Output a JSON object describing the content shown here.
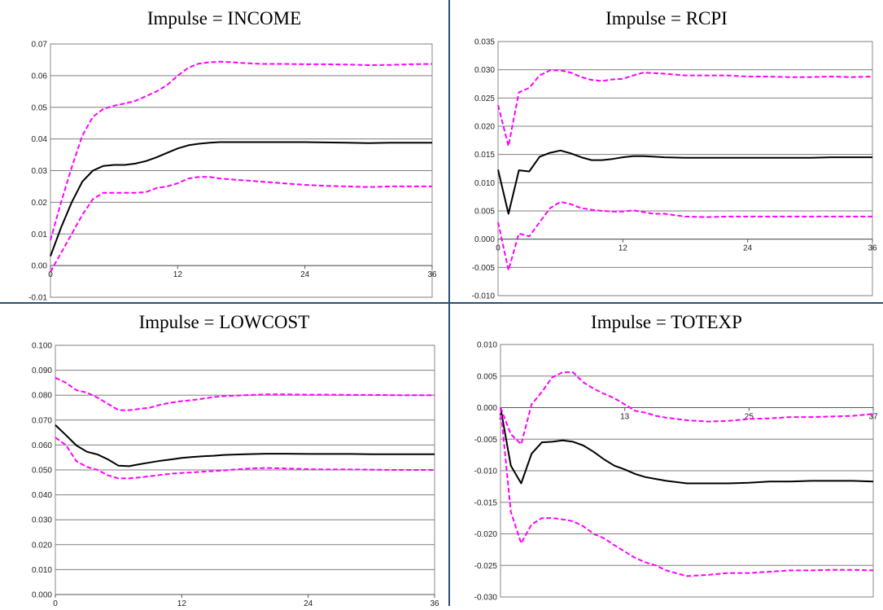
{
  "chart_data": [
    {
      "type": "line",
      "title": "Impulse = INCOME",
      "ylim": [
        -0.01,
        0.07
      ],
      "yticks": [
        "0.07",
        "0.06",
        "0.05",
        "0.04",
        "0.03",
        "0.02",
        "0.01",
        "0.00",
        "-0.01"
      ],
      "yvals": [
        0.07,
        0.06,
        0.05,
        0.04,
        0.03,
        0.02,
        0.01,
        0.0,
        -0.01
      ],
      "xlim": [
        0,
        36
      ],
      "xticks": [
        0,
        12,
        24,
        36
      ],
      "xaxis_at": 0,
      "series": [
        {
          "color": "#ff00ff",
          "dashed": true,
          "x": [
            0,
            1,
            2,
            3,
            4,
            5,
            6,
            7,
            8,
            9,
            10,
            11,
            12,
            13,
            14,
            15,
            16,
            17,
            18,
            20,
            22,
            24,
            26,
            28,
            30,
            32,
            34,
            36
          ],
          "y": [
            0.008,
            0.02,
            0.031,
            0.041,
            0.047,
            0.0495,
            0.0505,
            0.0512,
            0.052,
            0.0535,
            0.055,
            0.057,
            0.06,
            0.0625,
            0.0638,
            0.0642,
            0.0644,
            0.0643,
            0.064,
            0.0637,
            0.0637,
            0.0636,
            0.0636,
            0.0635,
            0.0633,
            0.0634,
            0.0636,
            0.0637
          ]
        },
        {
          "color": "#000000",
          "dashed": false,
          "x": [
            0,
            1,
            2,
            3,
            4,
            5,
            6,
            7,
            8,
            9,
            10,
            11,
            12,
            13,
            14,
            15,
            16,
            18,
            20,
            22,
            24,
            26,
            28,
            30,
            32,
            34,
            36
          ],
          "y": [
            0.003,
            0.012,
            0.02,
            0.0265,
            0.03,
            0.0315,
            0.0318,
            0.0318,
            0.0322,
            0.033,
            0.0342,
            0.0356,
            0.037,
            0.038,
            0.0385,
            0.0388,
            0.039,
            0.039,
            0.039,
            0.039,
            0.039,
            0.0389,
            0.0388,
            0.0387,
            0.0388,
            0.0388,
            0.0388
          ]
        },
        {
          "color": "#ff00ff",
          "dashed": true,
          "x": [
            0,
            1,
            2,
            3,
            4,
            5,
            6,
            7,
            8,
            9,
            10,
            11,
            12,
            13,
            14,
            15,
            16,
            18,
            20,
            22,
            24,
            26,
            28,
            30,
            32,
            34,
            36
          ],
          "y": [
            -0.002,
            0.004,
            0.01,
            0.016,
            0.021,
            0.023,
            0.023,
            0.023,
            0.023,
            0.0232,
            0.0245,
            0.025,
            0.026,
            0.0275,
            0.028,
            0.028,
            0.0275,
            0.027,
            0.0265,
            0.026,
            0.0255,
            0.0252,
            0.025,
            0.0248,
            0.025,
            0.025,
            0.025
          ]
        }
      ]
    },
    {
      "type": "line",
      "title": "Impulse = RCPI",
      "ylim": [
        -0.01,
        0.035
      ],
      "yticks": [
        "0.035",
        "0.030",
        "0.025",
        "0.020",
        "0.015",
        "0.010",
        "0.005",
        "0.000",
        "-0.005",
        "-0.010"
      ],
      "yvals": [
        0.035,
        0.03,
        0.025,
        0.02,
        0.015,
        0.01,
        0.005,
        0.0,
        -0.005,
        -0.01
      ],
      "xlim": [
        0,
        36
      ],
      "xticks": [
        0,
        12,
        24,
        36
      ],
      "xaxis_at": 0,
      "series": [
        {
          "color": "#ff00ff",
          "dashed": true,
          "x": [
            0,
            1,
            2,
            3,
            4,
            5,
            6,
            7,
            8,
            9,
            10,
            11,
            12,
            13,
            14,
            15,
            16,
            18,
            20,
            22,
            24,
            26,
            28,
            30,
            32,
            34,
            36
          ],
          "y": [
            0.0237,
            0.0165,
            0.026,
            0.0268,
            0.029,
            0.0299,
            0.0299,
            0.0295,
            0.0287,
            0.0282,
            0.028,
            0.0283,
            0.0284,
            0.029,
            0.0295,
            0.0294,
            0.0293,
            0.029,
            0.029,
            0.029,
            0.0288,
            0.0288,
            0.0287,
            0.0287,
            0.0288,
            0.0287,
            0.0288
          ]
        },
        {
          "color": "#000000",
          "dashed": false,
          "x": [
            0,
            1,
            2,
            3,
            4,
            5,
            6,
            7,
            8,
            9,
            10,
            11,
            12,
            13,
            14,
            15,
            16,
            18,
            20,
            22,
            24,
            26,
            28,
            30,
            32,
            34,
            36
          ],
          "y": [
            0.0123,
            0.0045,
            0.0122,
            0.012,
            0.0146,
            0.0153,
            0.0157,
            0.0152,
            0.0145,
            0.014,
            0.014,
            0.0142,
            0.0145,
            0.0147,
            0.0147,
            0.0146,
            0.0145,
            0.0144,
            0.0144,
            0.0144,
            0.0144,
            0.0144,
            0.0144,
            0.0144,
            0.0145,
            0.0145,
            0.0145
          ]
        },
        {
          "color": "#ff00ff",
          "dashed": true,
          "x": [
            0,
            1,
            2,
            3,
            4,
            5,
            6,
            7,
            8,
            9,
            10,
            11,
            12,
            13,
            14,
            15,
            16,
            18,
            20,
            22,
            24,
            26,
            28,
            30,
            32,
            34,
            36
          ],
          "y": [
            0.003,
            -0.0055,
            0.001,
            0.0005,
            0.003,
            0.0055,
            0.0066,
            0.0062,
            0.0055,
            0.0052,
            0.005,
            0.0049,
            0.0049,
            0.0051,
            0.0048,
            0.0045,
            0.0045,
            0.004,
            0.0039,
            0.004,
            0.004,
            0.004,
            0.004,
            0.004,
            0.004,
            0.004,
            0.004
          ]
        }
      ]
    },
    {
      "type": "line",
      "title": "Impulse = LOWCOST",
      "ylim": [
        0.0,
        0.1
      ],
      "yticks": [
        "0.100",
        "0.090",
        "0.080",
        "0.070",
        "0.060",
        "0.050",
        "0.040",
        "0.030",
        "0.020",
        "0.010",
        "0.000"
      ],
      "yvals": [
        0.1,
        0.09,
        0.08,
        0.07,
        0.06,
        0.05,
        0.04,
        0.03,
        0.02,
        0.01,
        0.0
      ],
      "xlim": [
        0,
        36
      ],
      "xticks": [
        0,
        12,
        24,
        36
      ],
      "xaxis_at": 0,
      "series": [
        {
          "color": "#ff00ff",
          "dashed": true,
          "x": [
            0,
            1,
            2,
            3,
            4,
            5,
            6,
            7,
            8,
            9,
            10,
            11,
            12,
            13,
            14,
            15,
            16,
            18,
            20,
            22,
            24,
            26,
            28,
            30,
            32,
            34,
            36
          ],
          "y": [
            0.087,
            0.085,
            0.082,
            0.081,
            0.079,
            0.0765,
            0.074,
            0.074,
            0.0745,
            0.075,
            0.0762,
            0.077,
            0.0776,
            0.078,
            0.0786,
            0.0792,
            0.0796,
            0.08,
            0.0803,
            0.0803,
            0.0802,
            0.0802,
            0.0801,
            0.0801,
            0.08,
            0.08,
            0.08
          ]
        },
        {
          "color": "#000000",
          "dashed": false,
          "x": [
            0,
            1,
            2,
            3,
            4,
            5,
            6,
            7,
            8,
            9,
            10,
            11,
            12,
            13,
            14,
            15,
            16,
            18,
            20,
            22,
            24,
            26,
            28,
            30,
            32,
            34,
            36
          ],
          "y": [
            0.068,
            0.064,
            0.0598,
            0.0573,
            0.0562,
            0.0542,
            0.0517,
            0.0515,
            0.0523,
            0.053,
            0.0537,
            0.0542,
            0.0548,
            0.0552,
            0.0555,
            0.0557,
            0.056,
            0.0563,
            0.0565,
            0.0565,
            0.0564,
            0.0564,
            0.0564,
            0.0563,
            0.0563,
            0.0563,
            0.0563
          ]
        },
        {
          "color": "#ff00ff",
          "dashed": true,
          "x": [
            0,
            1,
            2,
            3,
            4,
            5,
            6,
            7,
            8,
            9,
            10,
            11,
            12,
            13,
            14,
            15,
            16,
            18,
            20,
            22,
            24,
            26,
            28,
            30,
            32,
            34,
            36
          ],
          "y": [
            0.063,
            0.06,
            0.0535,
            0.0512,
            0.05,
            0.0478,
            0.0466,
            0.0466,
            0.047,
            0.0475,
            0.048,
            0.0485,
            0.0488,
            0.049,
            0.0493,
            0.0495,
            0.0498,
            0.0505,
            0.0508,
            0.0506,
            0.0503,
            0.0502,
            0.0502,
            0.0501,
            0.05,
            0.05,
            0.05
          ]
        }
      ]
    },
    {
      "type": "line",
      "title": "Impulse = TOTEXP",
      "ylim": [
        -0.03,
        0.01
      ],
      "yticks": [
        "0.010",
        "0.005",
        "0.000",
        "-0.005",
        "-0.010",
        "-0.015",
        "-0.020",
        "-0.025",
        "-0.030"
      ],
      "yvals": [
        0.01,
        0.005,
        0.0,
        -0.005,
        -0.01,
        -0.015,
        -0.02,
        -0.025,
        -0.03
      ],
      "xlim": [
        1,
        37
      ],
      "xticks": [
        1,
        13,
        25,
        37
      ],
      "xaxis_at": 0,
      "series": [
        {
          "color": "#ff00ff",
          "dashed": true,
          "x": [
            1,
            2,
            3,
            4,
            5,
            6,
            7,
            8,
            9,
            10,
            11,
            12,
            13,
            14,
            15,
            16,
            17,
            19,
            21,
            23,
            25,
            27,
            29,
            31,
            33,
            35,
            37
          ],
          "y": [
            0.0,
            -0.0042,
            -0.0058,
            0.0005,
            0.0025,
            0.0048,
            0.0056,
            0.0056,
            0.004,
            0.003,
            0.0022,
            0.0015,
            0.0005,
            -0.0005,
            -0.0008,
            -0.0013,
            -0.0016,
            -0.002,
            -0.0022,
            -0.0021,
            -0.0018,
            -0.0017,
            -0.0015,
            -0.0015,
            -0.0014,
            -0.0013,
            -0.001
          ]
        },
        {
          "color": "#000000",
          "dashed": false,
          "x": [
            1,
            2,
            3,
            4,
            5,
            6,
            7,
            8,
            9,
            10,
            11,
            12,
            13,
            14,
            15,
            16,
            17,
            19,
            21,
            23,
            25,
            27,
            29,
            31,
            33,
            35,
            37
          ],
          "y": [
            0.0,
            -0.0092,
            -0.012,
            -0.0073,
            -0.0055,
            -0.0054,
            -0.0052,
            -0.0054,
            -0.006,
            -0.007,
            -0.0082,
            -0.0092,
            -0.0098,
            -0.0105,
            -0.011,
            -0.0113,
            -0.0116,
            -0.012,
            -0.012,
            -0.012,
            -0.0119,
            -0.0117,
            -0.0117,
            -0.0116,
            -0.0116,
            -0.0116,
            -0.0117
          ]
        },
        {
          "color": "#ff00ff",
          "dashed": true,
          "x": [
            1,
            2,
            3,
            4,
            5,
            6,
            7,
            8,
            9,
            10,
            11,
            12,
            13,
            14,
            15,
            16,
            17,
            19,
            21,
            23,
            25,
            27,
            29,
            31,
            33,
            35,
            37
          ],
          "y": [
            0.0,
            -0.0165,
            -0.0215,
            -0.0185,
            -0.0175,
            -0.0175,
            -0.0177,
            -0.018,
            -0.0188,
            -0.02,
            -0.0207,
            -0.0218,
            -0.0228,
            -0.0238,
            -0.0245,
            -0.025,
            -0.0258,
            -0.0267,
            -0.0265,
            -0.0262,
            -0.0262,
            -0.026,
            -0.0258,
            -0.0258,
            -0.0257,
            -0.0257,
            -0.0258
          ]
        }
      ]
    }
  ]
}
